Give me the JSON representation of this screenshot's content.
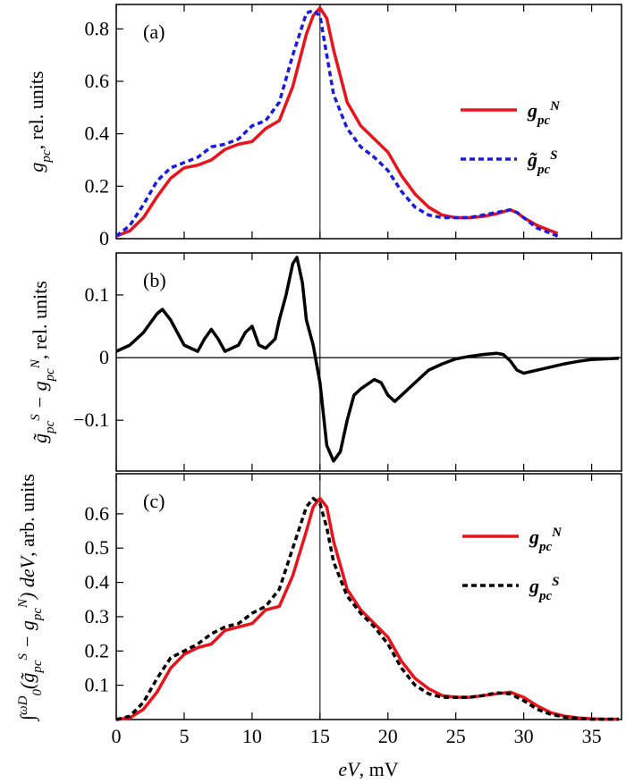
{
  "chart_data": [
    {
      "type": "line",
      "label": "(a)",
      "vline": 15,
      "ylabel": [
        "g",
        "pc",
        ", rel. units"
      ],
      "xlim": [
        0,
        37.2
      ],
      "xticks": [
        0,
        5,
        10,
        15,
        20,
        25,
        30,
        35
      ],
      "ylim": [
        0,
        0.893
      ],
      "yticks": [
        0,
        0.2,
        0.4,
        0.6,
        0.8
      ],
      "x": [
        0,
        1,
        2,
        3,
        4,
        5,
        6,
        7,
        8,
        9,
        10,
        11,
        12,
        13,
        14,
        14.5,
        15,
        15.5,
        16,
        17,
        18,
        19,
        20,
        21,
        22,
        23,
        24,
        25,
        26,
        27,
        28,
        29,
        29.5,
        30,
        31,
        32,
        32.5
      ],
      "series": [
        {
          "name": [
            "g",
            "pc",
            "N"
          ],
          "color": "#e8141c",
          "dash": false,
          "values": [
            0.01,
            0.03,
            0.08,
            0.16,
            0.23,
            0.27,
            0.28,
            0.3,
            0.34,
            0.36,
            0.37,
            0.42,
            0.45,
            0.58,
            0.78,
            0.85,
            0.88,
            0.84,
            0.72,
            0.52,
            0.43,
            0.38,
            0.33,
            0.24,
            0.17,
            0.12,
            0.09,
            0.08,
            0.08,
            0.085,
            0.095,
            0.11,
            0.1,
            0.08,
            0.05,
            0.03,
            0.02
          ]
        },
        {
          "name": [
            "g̃",
            "pc",
            "S"
          ],
          "color": "#1a1ae0",
          "dash": true,
          "values": [
            0.01,
            0.05,
            0.13,
            0.22,
            0.27,
            0.29,
            0.31,
            0.35,
            0.36,
            0.38,
            0.43,
            0.45,
            0.52,
            0.7,
            0.86,
            0.87,
            0.85,
            0.7,
            0.55,
            0.42,
            0.35,
            0.31,
            0.26,
            0.18,
            0.12,
            0.09,
            0.08,
            0.08,
            0.08,
            0.09,
            0.1,
            0.11,
            0.1,
            0.08,
            0.04,
            0.02,
            0.01
          ]
        }
      ]
    },
    {
      "type": "line",
      "label": "(b)",
      "vline": 15,
      "ylabel": [
        "g̃",
        "pc",
        "S",
        " − g",
        "pc",
        "N",
        ", rel. units"
      ],
      "xlim": [
        0,
        37.2
      ],
      "xticks": [
        0,
        5,
        10,
        15,
        20,
        25,
        30,
        35
      ],
      "ylim": [
        -0.181,
        0.167
      ],
      "yticks": [
        {
          "value": -0.1,
          "label": "−0.1"
        },
        0,
        0.1
      ],
      "x": [
        0,
        1,
        2,
        3,
        3.4,
        4,
        5,
        6,
        6.5,
        7,
        7.5,
        8,
        9,
        9.5,
        10,
        10.5,
        11,
        11.7,
        12,
        12.5,
        13,
        13.3,
        13.7,
        14,
        14.5,
        15,
        15.5,
        16,
        16.5,
        17,
        17.5,
        18,
        19,
        19.5,
        20,
        20.5,
        21,
        22,
        23,
        24,
        25,
        26,
        27,
        28,
        28.5,
        29,
        29.5,
        30,
        31,
        32,
        33,
        34,
        35,
        36,
        37
      ],
      "series": [
        {
          "color": "#000000",
          "dash": false,
          "values": [
            0.01,
            0.02,
            0.04,
            0.07,
            0.077,
            0.06,
            0.02,
            0.01,
            0.03,
            0.045,
            0.03,
            0.01,
            0.02,
            0.04,
            0.05,
            0.02,
            0.015,
            0.03,
            0.06,
            0.1,
            0.15,
            0.16,
            0.12,
            0.06,
            0.02,
            -0.04,
            -0.14,
            -0.165,
            -0.15,
            -0.1,
            -0.06,
            -0.05,
            -0.035,
            -0.04,
            -0.06,
            -0.07,
            -0.06,
            -0.04,
            -0.02,
            -0.01,
            -0.002,
            0.002,
            0.005,
            0.007,
            0.005,
            -0.005,
            -0.02,
            -0.025,
            -0.02,
            -0.015,
            -0.01,
            -0.006,
            -0.003,
            -0.002,
            -0.001
          ]
        }
      ]
    },
    {
      "type": "line",
      "label": "(c)",
      "vline": 15,
      "ylabel": [
        "∫",
        "ω",
        "D",
        "0",
        "(g̃",
        "pc",
        "S",
        " − g",
        "pc",
        "N",
        ") deV",
        ", arb. units"
      ],
      "xlabel": [
        "eV",
        ", mV"
      ],
      "xlim": [
        0,
        37.2
      ],
      "xticks": [
        0,
        5,
        10,
        15,
        20,
        25,
        30,
        35
      ],
      "ylim": [
        0,
        0.717
      ],
      "yticks": [
        0.1,
        0.2,
        0.3,
        0.4,
        0.5,
        0.6
      ],
      "x": [
        0,
        1,
        2,
        3,
        4,
        5,
        6,
        7,
        8,
        9,
        10,
        11,
        12,
        13,
        14,
        14.5,
        15,
        15.5,
        16,
        17,
        18,
        19,
        20,
        21,
        22,
        23,
        24,
        25,
        26,
        27,
        28,
        29,
        30,
        31,
        32,
        33,
        34,
        35,
        36,
        37
      ],
      "series": [
        {
          "name": [
            "g",
            "pc",
            "N"
          ],
          "color": "#e8141c",
          "dash": false,
          "values": [
            0,
            0.005,
            0.03,
            0.08,
            0.15,
            0.19,
            0.21,
            0.22,
            0.26,
            0.27,
            0.28,
            0.32,
            0.33,
            0.42,
            0.55,
            0.62,
            0.645,
            0.62,
            0.52,
            0.38,
            0.32,
            0.28,
            0.24,
            0.17,
            0.12,
            0.09,
            0.07,
            0.065,
            0.065,
            0.07,
            0.075,
            0.08,
            0.065,
            0.04,
            0.02,
            0.01,
            0.005,
            0.002,
            0.001,
            0.001
          ]
        },
        {
          "name": [
            "g",
            "pc",
            "S"
          ],
          "color": "#000000",
          "dash": true,
          "values": [
            0,
            0.01,
            0.05,
            0.12,
            0.18,
            0.2,
            0.22,
            0.25,
            0.27,
            0.28,
            0.31,
            0.33,
            0.38,
            0.5,
            0.62,
            0.645,
            0.63,
            0.56,
            0.46,
            0.36,
            0.31,
            0.27,
            0.22,
            0.15,
            0.1,
            0.075,
            0.065,
            0.065,
            0.065,
            0.07,
            0.078,
            0.075,
            0.055,
            0.03,
            0.015,
            0.007,
            0.003,
            0.001,
            0.001,
            0.001
          ]
        }
      ]
    }
  ]
}
